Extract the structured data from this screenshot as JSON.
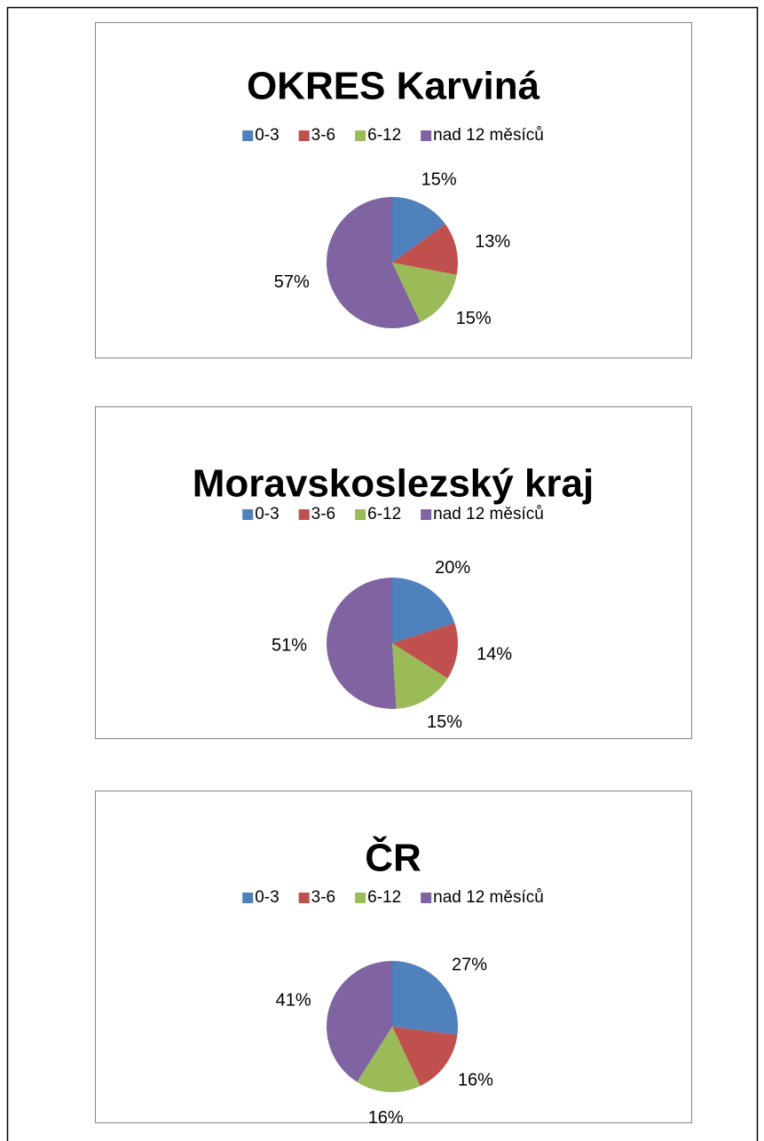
{
  "chart_data": [
    {
      "type": "pie",
      "title": "OKRES Karviná",
      "categories": [
        "0-3",
        "3-6",
        "6-12",
        "nad 12 měsíců"
      ],
      "values": [
        15,
        13,
        15,
        57
      ],
      "value_labels": [
        "15%",
        "13%",
        "15%",
        "57%"
      ],
      "colors": [
        "#4f81bd",
        "#c0504d",
        "#9bbb59",
        "#8064a2"
      ],
      "legend": "top"
    },
    {
      "type": "pie",
      "title": "Moravskoslezský kraj",
      "categories": [
        "0-3",
        "3-6",
        "6-12",
        "nad 12 měsíců"
      ],
      "values": [
        20,
        14,
        15,
        51
      ],
      "value_labels": [
        "20%",
        "14%",
        "15%",
        "51%"
      ],
      "colors": [
        "#4f81bd",
        "#c0504d",
        "#9bbb59",
        "#8064a2"
      ],
      "legend": "top"
    },
    {
      "type": "pie",
      "title": "ČR",
      "categories": [
        "0-3",
        "3-6",
        "6-12",
        "nad 12 měsíců"
      ],
      "values": [
        27,
        16,
        16,
        41
      ],
      "value_labels": [
        "27%",
        "16%",
        "16%",
        "41%"
      ],
      "colors": [
        "#4f81bd",
        "#c0504d",
        "#9bbb59",
        "#8064a2"
      ],
      "legend": "top"
    }
  ]
}
